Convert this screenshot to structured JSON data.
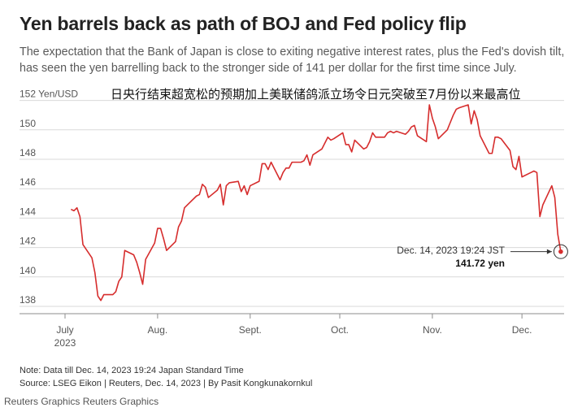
{
  "header": {
    "title": "Yen barrels back as path of BOJ and Fed policy flip",
    "subtitle": "The expectation that the Bank of Japan is close to exiting negative interest rates, plus the Fed's dovish tilt, has seen the yen barrelling back to the stronger side of 141 per dollar for the first time since July.",
    "overlay_text": "日央行结束超宽松的预期加上美联储鸽派立场令日元突破至7月份以来最高位"
  },
  "chart_data": {
    "type": "line",
    "title": "Yen barrels back as path of BOJ and Fed policy flip",
    "xlabel": "",
    "ylabel": "Yen/USD",
    "ylim": [
      137.5,
      152
    ],
    "grid": true,
    "y_ticks": [
      {
        "value": 152,
        "label": "152 Yen/USD"
      },
      {
        "value": 150,
        "label": "150"
      },
      {
        "value": 148,
        "label": "148"
      },
      {
        "value": 146,
        "label": "146"
      },
      {
        "value": 144,
        "label": "144"
      },
      {
        "value": 142,
        "label": "142"
      },
      {
        "value": 140,
        "label": "140"
      },
      {
        "value": 138,
        "label": "138"
      }
    ],
    "x_ticks": [
      {
        "date": "2023-07-01",
        "label": "July",
        "sublabel": "2023"
      },
      {
        "date": "2023-08-01",
        "label": "Aug.",
        "sublabel": ""
      },
      {
        "date": "2023-09-01",
        "label": "Sept.",
        "sublabel": ""
      },
      {
        "date": "2023-10-01",
        "label": "Oct.",
        "sublabel": ""
      },
      {
        "date": "2023-11-01",
        "label": "Nov.",
        "sublabel": ""
      },
      {
        "date": "2023-12-01",
        "label": "Dec.",
        "sublabel": ""
      }
    ],
    "series": [
      {
        "color": "#d62d2d",
        "points": [
          [
            "2023-07-03",
            144.6
          ],
          [
            "2023-07-04",
            144.5
          ],
          [
            "2023-07-05",
            144.7
          ],
          [
            "2023-07-06",
            144.1
          ],
          [
            "2023-07-07",
            142.2
          ],
          [
            "2023-07-10",
            141.3
          ],
          [
            "2023-07-11",
            140.3
          ],
          [
            "2023-07-12",
            138.7
          ],
          [
            "2023-07-13",
            138.4
          ],
          [
            "2023-07-14",
            138.8
          ],
          [
            "2023-07-17",
            138.8
          ],
          [
            "2023-07-18",
            139.0
          ],
          [
            "2023-07-19",
            139.7
          ],
          [
            "2023-07-20",
            140.0
          ],
          [
            "2023-07-21",
            141.8
          ],
          [
            "2023-07-24",
            141.5
          ],
          [
            "2023-07-25",
            141.0
          ],
          [
            "2023-07-26",
            140.3
          ],
          [
            "2023-07-27",
            139.5
          ],
          [
            "2023-07-28",
            141.2
          ],
          [
            "2023-07-31",
            142.3
          ],
          [
            "2023-08-01",
            143.3
          ],
          [
            "2023-08-02",
            143.3
          ],
          [
            "2023-08-03",
            142.6
          ],
          [
            "2023-08-04",
            141.8
          ],
          [
            "2023-08-07",
            142.4
          ],
          [
            "2023-08-08",
            143.4
          ],
          [
            "2023-08-09",
            143.8
          ],
          [
            "2023-08-10",
            144.7
          ],
          [
            "2023-08-11",
            144.9
          ],
          [
            "2023-08-14",
            145.5
          ],
          [
            "2023-08-15",
            145.6
          ],
          [
            "2023-08-16",
            146.3
          ],
          [
            "2023-08-17",
            146.1
          ],
          [
            "2023-08-18",
            145.4
          ],
          [
            "2023-08-21",
            145.9
          ],
          [
            "2023-08-22",
            146.3
          ],
          [
            "2023-08-23",
            144.9
          ],
          [
            "2023-08-24",
            146.2
          ],
          [
            "2023-08-25",
            146.4
          ],
          [
            "2023-08-28",
            146.5
          ],
          [
            "2023-08-29",
            145.8
          ],
          [
            "2023-08-30",
            146.2
          ],
          [
            "2023-08-31",
            145.6
          ],
          [
            "2023-09-01",
            146.2
          ],
          [
            "2023-09-04",
            146.5
          ],
          [
            "2023-09-05",
            147.7
          ],
          [
            "2023-09-06",
            147.7
          ],
          [
            "2023-09-07",
            147.3
          ],
          [
            "2023-09-08",
            147.8
          ],
          [
            "2023-09-11",
            146.6
          ],
          [
            "2023-09-12",
            147.1
          ],
          [
            "2023-09-13",
            147.4
          ],
          [
            "2023-09-14",
            147.4
          ],
          [
            "2023-09-15",
            147.8
          ],
          [
            "2023-09-18",
            147.8
          ],
          [
            "2023-09-19",
            147.9
          ],
          [
            "2023-09-20",
            148.3
          ],
          [
            "2023-09-21",
            147.6
          ],
          [
            "2023-09-22",
            148.3
          ],
          [
            "2023-09-25",
            148.7
          ],
          [
            "2023-09-26",
            149.1
          ],
          [
            "2023-09-27",
            149.5
          ],
          [
            "2023-09-28",
            149.3
          ],
          [
            "2023-09-29",
            149.4
          ],
          [
            "2023-10-02",
            149.8
          ],
          [
            "2023-10-03",
            149.0
          ],
          [
            "2023-10-04",
            149.0
          ],
          [
            "2023-10-05",
            148.5
          ],
          [
            "2023-10-06",
            149.3
          ],
          [
            "2023-10-09",
            148.7
          ],
          [
            "2023-10-10",
            148.8
          ],
          [
            "2023-10-11",
            149.2
          ],
          [
            "2023-10-12",
            149.8
          ],
          [
            "2023-10-13",
            149.5
          ],
          [
            "2023-10-16",
            149.5
          ],
          [
            "2023-10-17",
            149.8
          ],
          [
            "2023-10-18",
            149.9
          ],
          [
            "2023-10-19",
            149.8
          ],
          [
            "2023-10-20",
            149.9
          ],
          [
            "2023-10-23",
            149.7
          ],
          [
            "2023-10-24",
            149.9
          ],
          [
            "2023-10-25",
            150.2
          ],
          [
            "2023-10-26",
            150.3
          ],
          [
            "2023-10-27",
            149.6
          ],
          [
            "2023-10-30",
            149.2
          ],
          [
            "2023-10-31",
            151.7
          ],
          [
            "2023-11-01",
            150.8
          ],
          [
            "2023-11-02",
            150.2
          ],
          [
            "2023-11-03",
            149.4
          ],
          [
            "2023-11-06",
            150.0
          ],
          [
            "2023-11-07",
            150.5
          ],
          [
            "2023-11-08",
            151.0
          ],
          [
            "2023-11-09",
            151.4
          ],
          [
            "2023-11-10",
            151.5
          ],
          [
            "2023-11-13",
            151.7
          ],
          [
            "2023-11-14",
            150.4
          ],
          [
            "2023-11-15",
            151.3
          ],
          [
            "2023-11-16",
            150.7
          ],
          [
            "2023-11-17",
            149.6
          ],
          [
            "2023-11-20",
            148.4
          ],
          [
            "2023-11-21",
            148.4
          ],
          [
            "2023-11-22",
            149.5
          ],
          [
            "2023-11-23",
            149.5
          ],
          [
            "2023-11-24",
            149.4
          ],
          [
            "2023-11-27",
            148.6
          ],
          [
            "2023-11-28",
            147.5
          ],
          [
            "2023-11-29",
            147.3
          ],
          [
            "2023-11-30",
            148.2
          ],
          [
            "2023-12-01",
            146.8
          ],
          [
            "2023-12-04",
            147.1
          ],
          [
            "2023-12-05",
            147.2
          ],
          [
            "2023-12-06",
            147.1
          ],
          [
            "2023-12-07",
            144.1
          ],
          [
            "2023-12-08",
            144.9
          ],
          [
            "2023-12-11",
            146.2
          ],
          [
            "2023-12-12",
            145.4
          ],
          [
            "2023-12-13",
            142.9
          ],
          [
            "2023-12-14",
            141.72
          ]
        ]
      }
    ],
    "annotation": {
      "date": "2023-12-14",
      "value": 141.72,
      "label": "Dec. 14, 2023 19:24 JST",
      "value_label": "141.72 yen"
    }
  },
  "footer": {
    "note": "Note: Data till Dec. 14, 2023 19:24 Japan Standard Time",
    "source": "Source: LSEG Eikon | Reuters, Dec. 14, 2023 | By Pasit Kongkunakornkul",
    "credit": "Reuters Graphics Reuters Graphics"
  }
}
